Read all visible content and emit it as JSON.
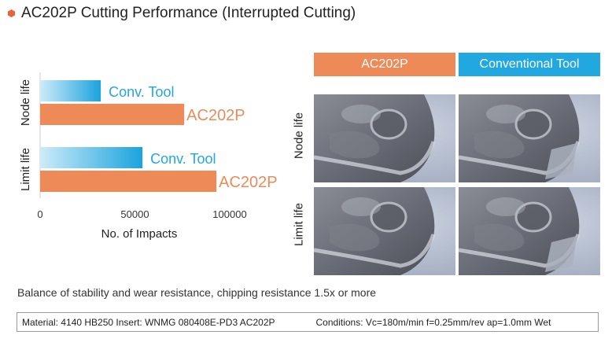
{
  "title": "AC202P Cutting Performance (Interrupted Cutting)",
  "colors": {
    "ac202p": "#ee8a58",
    "conv": "#21a8e0",
    "accent": "#e8643c"
  },
  "chart_data": {
    "type": "bar",
    "orientation": "horizontal",
    "groups": [
      "Node life",
      "Limit life"
    ],
    "series": [
      {
        "name": "Conv. Tool",
        "values": [
          32000,
          54000
        ]
      },
      {
        "name": "AC202P",
        "values": [
          76000,
          93000
        ]
      }
    ],
    "series_display_labels": [
      {
        "group": "Node life",
        "labels": [
          "Conv. Tool",
          "AC202P"
        ]
      },
      {
        "group": "Limit life",
        "labels": [
          "Conv. Tool",
          "AC202P"
        ]
      }
    ],
    "xlabel": "No. of Impacts",
    "xticks": [
      "0",
      "50000",
      "100000"
    ],
    "xlim": [
      0,
      105000
    ]
  },
  "photos": {
    "col_headers": [
      "AC202P",
      "Conventional Tool"
    ],
    "row_labels": [
      "Node life",
      "Limit life"
    ]
  },
  "summary": "Balance of stability and wear resistance, chipping resistance 1.5x or more",
  "conditions": {
    "material": "Material: 4140 HB250 Insert: WNMG 080408E-PD3 AC202P",
    "cutting": "Conditions: Vc=180m/min f=0.25mm/rev ap=1.0mm Wet"
  }
}
